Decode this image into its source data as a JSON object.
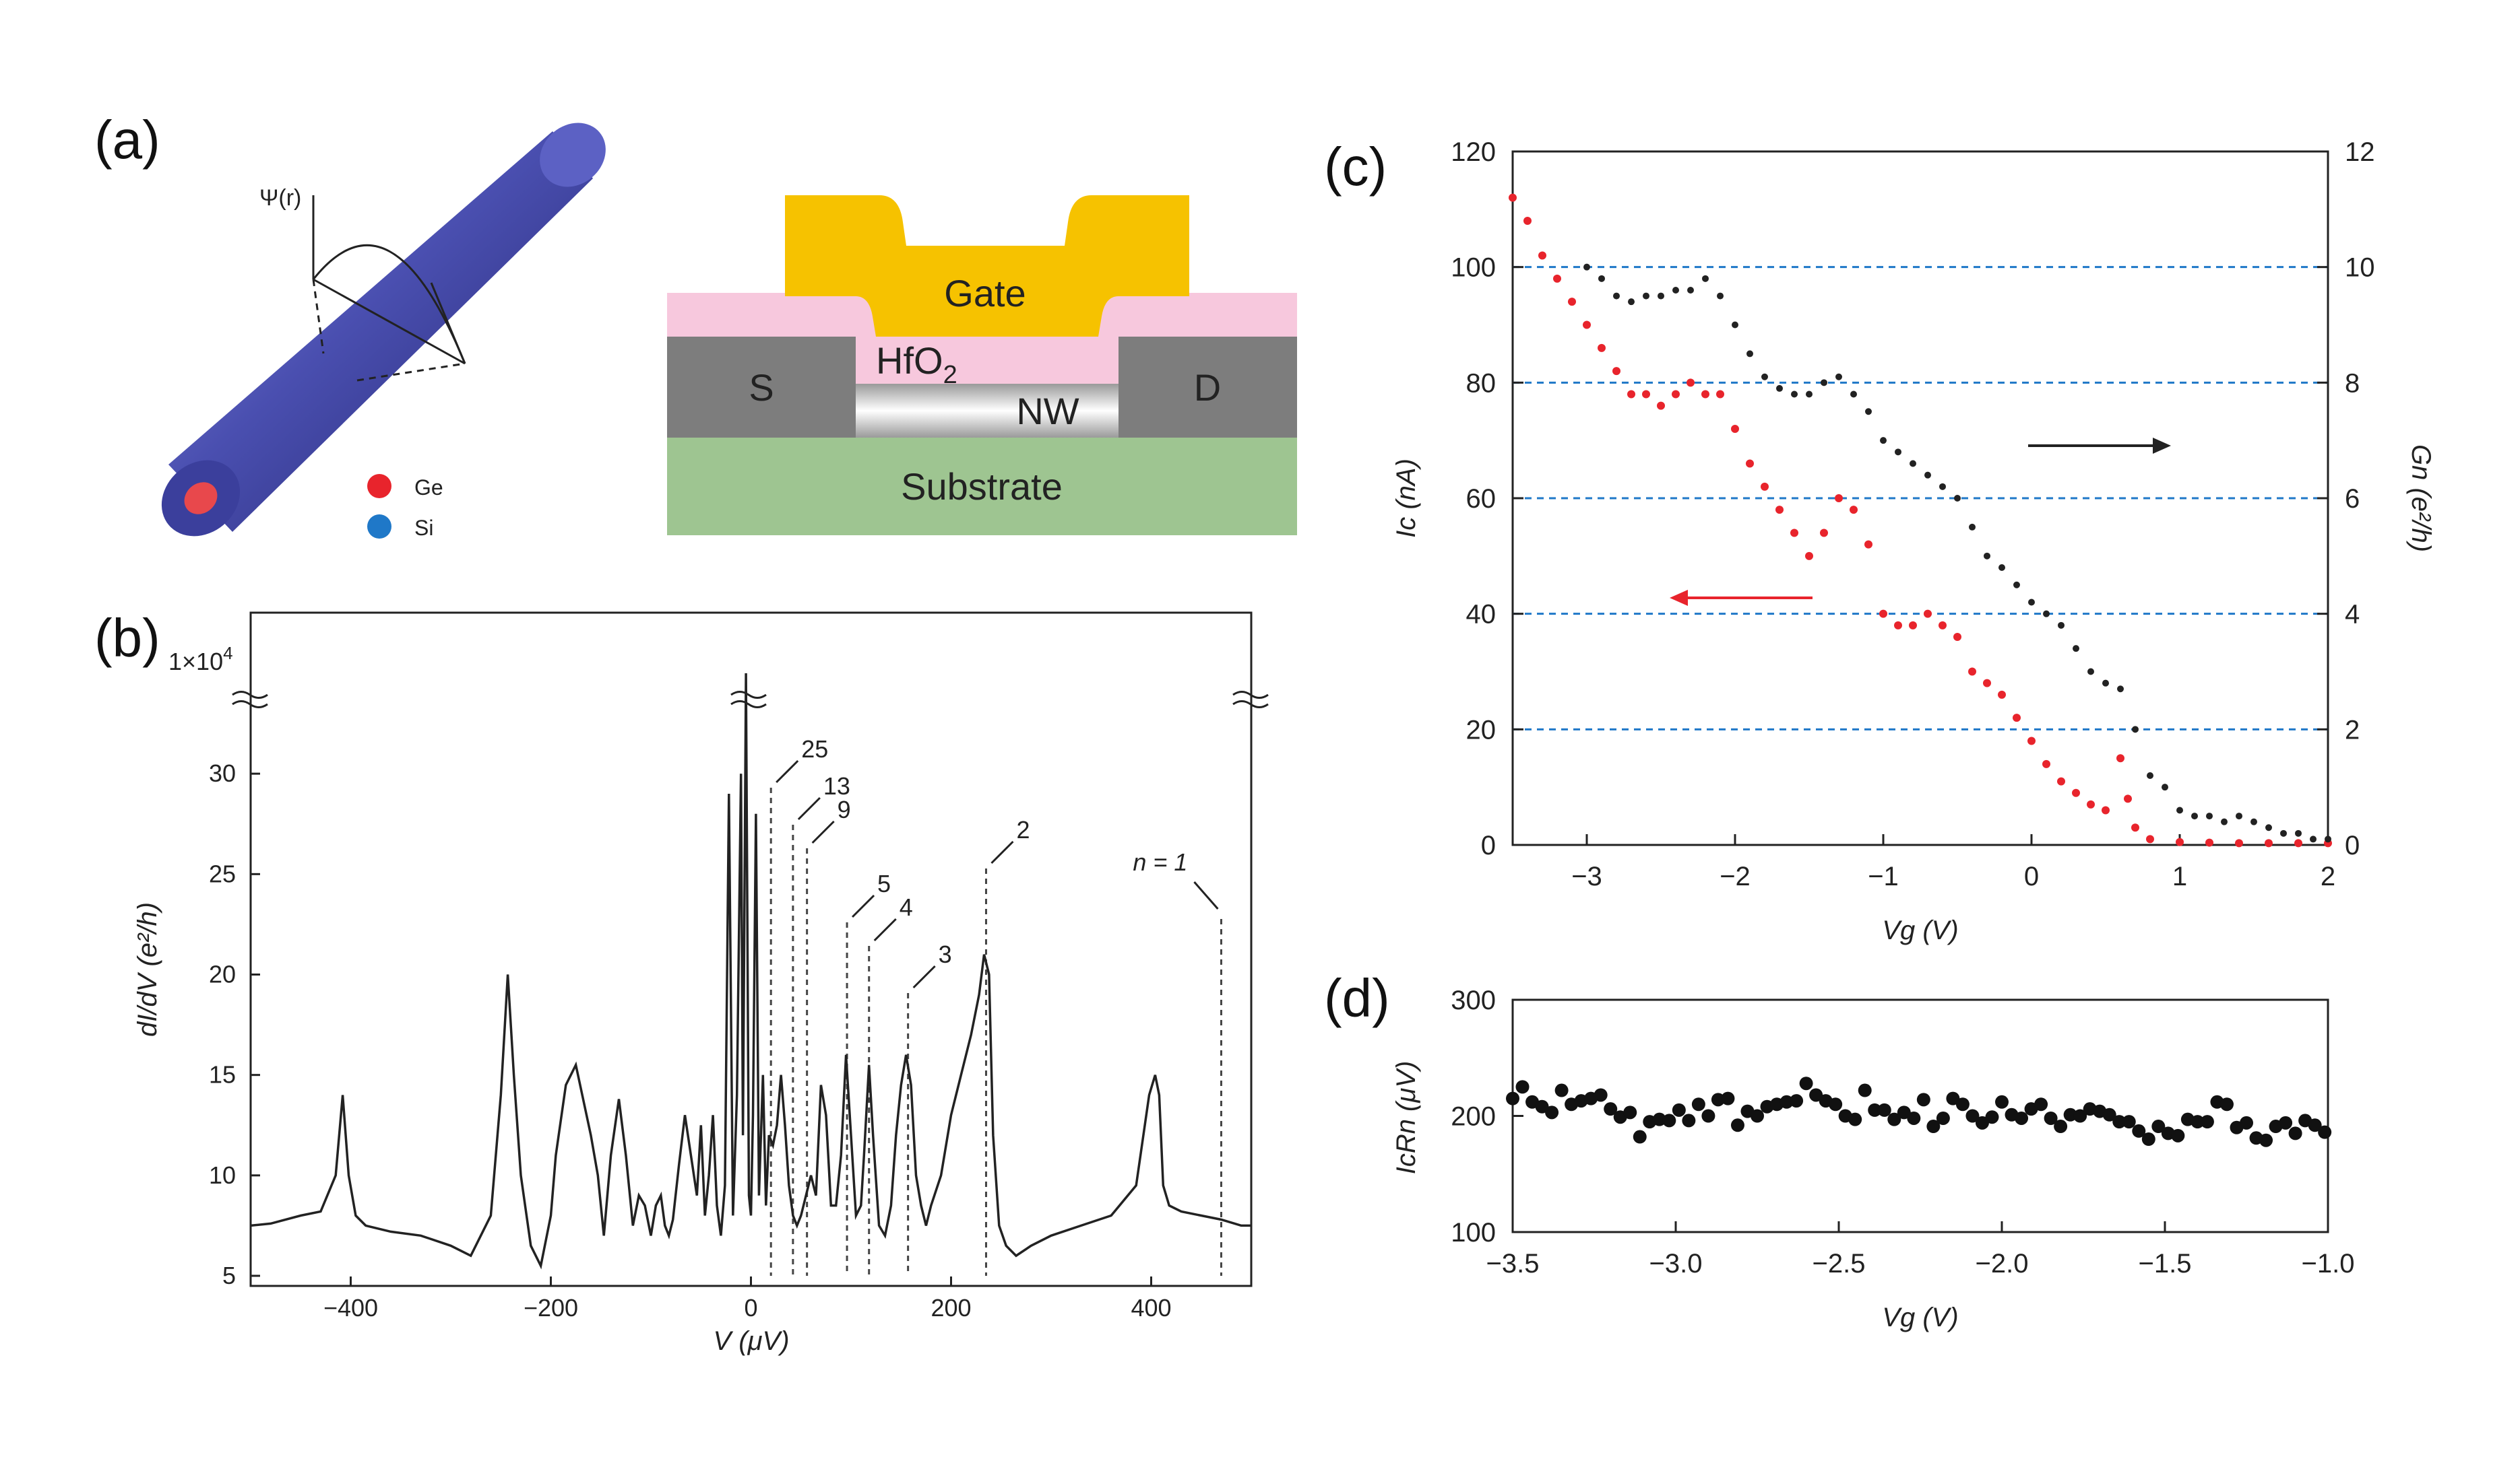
{
  "panels": {
    "a": {
      "label": "(a)",
      "wavefunction_label": "Ψ(r)",
      "legend": [
        {
          "name": "Ge",
          "color": "#e8242c"
        },
        {
          "name": "Si",
          "color": "#1f78c8"
        }
      ],
      "device": {
        "gate": "Gate",
        "oxide": "HfO",
        "oxide_sub": "2",
        "source": "S",
        "drain": "D",
        "nanowire": "NW",
        "substrate": "Substrate",
        "colors": {
          "gate": "#f6c200",
          "oxide": "#f7c8dd",
          "contact": "#7d7d7d",
          "substrate": "#9ec591"
        }
      }
    },
    "b": {
      "label": "(b)",
      "top_tick": "1×10",
      "top_tick_exp": "4",
      "ylabel": "dI/dV (e²/h)",
      "xlabel": "V (μV)"
    },
    "c": {
      "label": "(c)",
      "ylabel_left": "Ic (nA)",
      "ylabel_right": "Gn (e²/h)",
      "xlabel": "Vg (V)"
    },
    "d": {
      "label": "(d)",
      "ylabel": "IcRn (μV)",
      "xlabel": "Vg (V)"
    }
  },
  "chart_data": [
    {
      "id": "b",
      "type": "line",
      "title": "",
      "xlabel": "V (μV)",
      "ylabel": "dI/dV (e²/h)",
      "xlim": [
        -500,
        500
      ],
      "ylim": [
        5,
        35
      ],
      "xticks": [
        -400,
        -200,
        0,
        200,
        400
      ],
      "yticks": [
        5,
        10,
        15,
        20,
        25,
        30
      ],
      "series": [
        {
          "name": "dI/dV",
          "x": [
            -500,
            -480,
            -450,
            -430,
            -415,
            -408,
            -402,
            -395,
            -385,
            -360,
            -330,
            -300,
            -280,
            -260,
            -250,
            -243,
            -237,
            -230,
            -220,
            -210,
            -200,
            -195,
            -185,
            -175,
            -160,
            -153,
            -147,
            -140,
            -132,
            -125,
            -118,
            -112,
            -106,
            -100,
            -95,
            -90,
            -86,
            -82,
            -78,
            -72,
            -66,
            -60,
            -54,
            -50,
            -46,
            -42,
            -38,
            -34,
            -30,
            -26,
            -22,
            -18,
            -14,
            -10,
            -8,
            -5,
            -2,
            0,
            2,
            5,
            8,
            12,
            15,
            18,
            22,
            26,
            30,
            34,
            38,
            42,
            46,
            50,
            55,
            60,
            65,
            70,
            75,
            80,
            85,
            90,
            95,
            100,
            105,
            110,
            113,
            118,
            122,
            128,
            134,
            140,
            145,
            150,
            155,
            160,
            165,
            170,
            175,
            180,
            190,
            200,
            210,
            220,
            228,
            233,
            238,
            242,
            248,
            255,
            265,
            280,
            300,
            330,
            360,
            385,
            398,
            404,
            408,
            412,
            418,
            430,
            450,
            470,
            490,
            500
          ],
          "y": [
            7.5,
            7.6,
            8.0,
            8.2,
            10.0,
            14.0,
            10.0,
            8.0,
            7.5,
            7.2,
            7.0,
            6.5,
            6.0,
            8.0,
            14.0,
            20.0,
            15.0,
            10.0,
            6.5,
            5.5,
            8.0,
            11.0,
            14.5,
            15.5,
            12.0,
            10.0,
            7.0,
            11.0,
            13.8,
            11.0,
            7.5,
            9.0,
            8.5,
            7.0,
            8.5,
            9.0,
            7.5,
            7.0,
            7.8,
            10.5,
            13.0,
            11.0,
            9.0,
            12.5,
            8.0,
            10.0,
            13.0,
            8.5,
            7.0,
            9.5,
            29.0,
            8.0,
            14.0,
            30.0,
            12.0,
            35.0,
            9.0,
            8.0,
            13.0,
            28.0,
            9.0,
            15.0,
            8.5,
            12.0,
            11.5,
            12.5,
            15.0,
            12.5,
            9.5,
            8.0,
            7.5,
            8.0,
            9.0,
            10.0,
            9.0,
            14.5,
            13.0,
            8.5,
            8.5,
            11.0,
            16.0,
            12.0,
            8.0,
            8.5,
            11.0,
            15.5,
            12.0,
            7.5,
            7.0,
            8.5,
            12.0,
            14.5,
            16.0,
            14.5,
            10.0,
            8.5,
            7.5,
            8.5,
            10.0,
            13.0,
            15.0,
            17.0,
            19.0,
            21.0,
            20.0,
            12.0,
            7.5,
            6.5,
            6.0,
            6.5,
            7.0,
            7.5,
            8.0,
            9.5,
            14.0,
            15.0,
            14.0,
            9.5,
            8.5,
            8.2,
            8.0,
            7.8,
            7.5,
            7.5
          ]
        }
      ],
      "annotations": [
        {
          "text": "25",
          "x": 20
        },
        {
          "text": "13",
          "x": 42
        },
        {
          "text": "9",
          "x": 56
        },
        {
          "text": "5",
          "x": 96
        },
        {
          "text": "4",
          "x": 118
        },
        {
          "text": "3",
          "x": 157
        },
        {
          "text": "2",
          "x": 235
        },
        {
          "text": "n = 1",
          "x": 470
        }
      ]
    },
    {
      "id": "c",
      "type": "scatter",
      "title": "",
      "xlabel": "Vg (V)",
      "ylabel": "Ic (nA)",
      "y2label": "Gn (e²/h)",
      "xlim": [
        -3.5,
        2
      ],
      "ylim": [
        0,
        120
      ],
      "y2lim": [
        0,
        12
      ],
      "xticks": [
        -3,
        -2,
        -1,
        0,
        1,
        2
      ],
      "yticks": [
        0,
        20,
        40,
        60,
        80,
        100,
        120
      ],
      "y2ticks": [
        0,
        2,
        4,
        6,
        8,
        10,
        12
      ],
      "gridlines_y2": [
        2,
        4,
        6,
        8,
        10
      ],
      "series": [
        {
          "name": "Ic",
          "color": "#e8242c",
          "axis": "left",
          "x": [
            -3.5,
            -3.4,
            -3.3,
            -3.2,
            -3.1,
            -3.0,
            -2.9,
            -2.8,
            -2.7,
            -2.6,
            -2.5,
            -2.4,
            -2.3,
            -2.2,
            -2.1,
            -2.0,
            -1.9,
            -1.8,
            -1.7,
            -1.6,
            -1.5,
            -1.4,
            -1.3,
            -1.2,
            -1.1,
            -1.0,
            -0.9,
            -0.8,
            -0.7,
            -0.6,
            -0.5,
            -0.4,
            -0.3,
            -0.2,
            -0.1,
            0.0,
            0.1,
            0.2,
            0.3,
            0.4,
            0.5,
            0.6,
            0.65,
            0.7,
            0.8,
            1.0,
            1.2,
            1.4,
            1.6,
            1.8,
            2.0
          ],
          "y": [
            112,
            108,
            102,
            98,
            94,
            90,
            86,
            82,
            78,
            78,
            76,
            78,
            80,
            78,
            78,
            72,
            66,
            62,
            58,
            54,
            50,
            54,
            60,
            58,
            52,
            40,
            38,
            38,
            40,
            38,
            36,
            30,
            28,
            26,
            22,
            18,
            14,
            11,
            9,
            7,
            6,
            15,
            8,
            3,
            1,
            0.5,
            0.4,
            0.3,
            0.3,
            0.3,
            0.3
          ]
        },
        {
          "name": "Gn",
          "color": "#222222",
          "axis": "right",
          "x": [
            -3.0,
            -2.9,
            -2.8,
            -2.7,
            -2.6,
            -2.5,
            -2.4,
            -2.3,
            -2.2,
            -2.1,
            -2.0,
            -1.9,
            -1.8,
            -1.7,
            -1.6,
            -1.5,
            -1.4,
            -1.3,
            -1.2,
            -1.1,
            -1.0,
            -0.9,
            -0.8,
            -0.7,
            -0.6,
            -0.5,
            -0.4,
            -0.3,
            -0.2,
            -0.1,
            0.0,
            0.1,
            0.2,
            0.3,
            0.4,
            0.5,
            0.6,
            0.7,
            0.8,
            0.9,
            1.0,
            1.1,
            1.2,
            1.3,
            1.4,
            1.5,
            1.6,
            1.7,
            1.8,
            1.9,
            2.0
          ],
          "y": [
            10.0,
            9.8,
            9.5,
            9.4,
            9.5,
            9.5,
            9.6,
            9.6,
            9.8,
            9.5,
            9.0,
            8.5,
            8.1,
            7.9,
            7.8,
            7.8,
            8.0,
            8.1,
            7.8,
            7.5,
            7.0,
            6.8,
            6.6,
            6.4,
            6.2,
            6.0,
            5.5,
            5.0,
            4.8,
            4.5,
            4.2,
            4.0,
            3.8,
            3.4,
            3.0,
            2.8,
            2.7,
            2.0,
            1.2,
            1.0,
            0.6,
            0.5,
            0.5,
            0.4,
            0.5,
            0.4,
            0.3,
            0.2,
            0.2,
            0.1,
            0.1
          ]
        }
      ],
      "arrows": [
        {
          "direction": "left",
          "color": "#e8242c",
          "target_axis": "left"
        },
        {
          "direction": "right",
          "color": "#222222",
          "target_axis": "right"
        }
      ]
    },
    {
      "id": "d",
      "type": "scatter",
      "title": "",
      "xlabel": "Vg (V)",
      "ylabel": "IcRn (μV)",
      "xlim": [
        -3.5,
        -1.0
      ],
      "ylim": [
        100,
        300
      ],
      "xticks": [
        -3.5,
        -3.0,
        -2.5,
        -2.0,
        -1.5,
        -1.0
      ],
      "yticks": [
        100,
        200,
        300
      ],
      "series": [
        {
          "name": "IcRn",
          "color": "#111111",
          "x": [
            -3.5,
            -3.47,
            -3.44,
            -3.41,
            -3.38,
            -3.35,
            -3.32,
            -3.29,
            -3.26,
            -3.23,
            -3.2,
            -3.17,
            -3.14,
            -3.11,
            -3.08,
            -3.05,
            -3.02,
            -2.99,
            -2.96,
            -2.93,
            -2.9,
            -2.87,
            -2.84,
            -2.81,
            -2.78,
            -2.75,
            -2.72,
            -2.69,
            -2.66,
            -2.63,
            -2.6,
            -2.57,
            -2.54,
            -2.51,
            -2.48,
            -2.45,
            -2.42,
            -2.39,
            -2.36,
            -2.33,
            -2.3,
            -2.27,
            -2.24,
            -2.21,
            -2.18,
            -2.15,
            -2.12,
            -2.09,
            -2.06,
            -2.03,
            -2.0,
            -1.97,
            -1.94,
            -1.91,
            -1.88,
            -1.85,
            -1.82,
            -1.79,
            -1.76,
            -1.73,
            -1.7,
            -1.67,
            -1.64,
            -1.61,
            -1.58,
            -1.55,
            -1.52,
            -1.49,
            -1.46,
            -1.43,
            -1.4,
            -1.37,
            -1.34,
            -1.31,
            -1.28,
            -1.25,
            -1.22,
            -1.19,
            -1.16,
            -1.13,
            -1.1,
            -1.07,
            -1.04,
            -1.01
          ],
          "y": [
            215,
            225,
            212,
            208,
            203,
            222,
            210,
            213,
            215,
            218,
            206,
            199,
            203,
            182,
            195,
            197,
            196,
            205,
            196,
            210,
            200,
            214,
            215,
            192,
            204,
            200,
            208,
            210,
            212,
            213,
            228,
            218,
            213,
            210,
            200,
            197,
            222,
            205,
            205,
            197,
            203,
            198,
            214,
            191,
            198,
            215,
            210,
            200,
            194,
            199,
            212,
            201,
            198,
            206,
            210,
            198,
            191,
            201,
            200,
            206,
            204,
            201,
            195,
            195,
            187,
            180,
            191,
            185,
            183,
            197,
            195,
            195,
            212,
            210,
            190,
            194,
            181,
            179,
            191,
            194,
            185,
            196,
            192,
            186
          ]
        }
      ]
    }
  ]
}
